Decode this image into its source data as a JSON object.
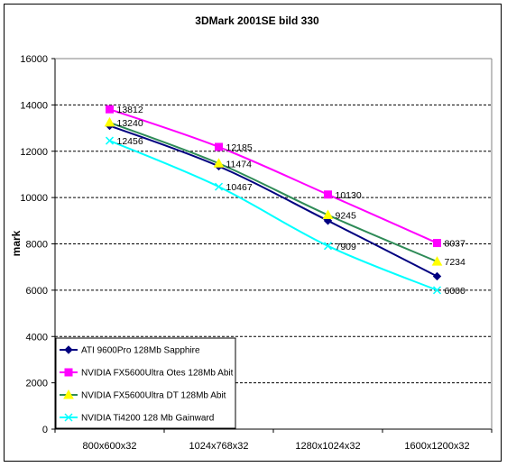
{
  "chart_data": {
    "type": "line",
    "title": "3DMark 2001SE bild 330",
    "ylabel": "mark",
    "xlabel": "",
    "categories": [
      "800x600x32",
      "1024x768x32",
      "1280x1024x32",
      "1600x1200x32"
    ],
    "ylim": [
      0,
      16000
    ],
    "yticks": [
      0,
      2000,
      4000,
      6000,
      8000,
      10000,
      12000,
      14000,
      16000
    ],
    "grid": "horizontal dashed",
    "legend_position": "bottom-left inside",
    "series": [
      {
        "name": "ATI 9600Pro 128Mb Sapphire",
        "values": [
          13100,
          11350,
          9000,
          6600
        ],
        "color": "#000080",
        "marker": "diamond",
        "labeled": false
      },
      {
        "name": "NVIDIA FX5600Ultra Otes 128Mb Abit",
        "values": [
          13812,
          12185,
          10130,
          8037
        ],
        "color": "#FF00FF",
        "marker": "square",
        "labeled": true
      },
      {
        "name": "NVIDIA FX5600Ultra DT 128Mb Abit",
        "values": [
          13240,
          11474,
          9245,
          7234
        ],
        "color": "#2E8B57",
        "marker": "triangle",
        "marker_color": "#FFFF00",
        "labeled": true
      },
      {
        "name": "NVIDIA Ti4200 128 Mb Gainward",
        "values": [
          12456,
          10467,
          7909,
          6000
        ],
        "color": "#00FFFF",
        "marker": "x",
        "labeled": true
      }
    ]
  }
}
